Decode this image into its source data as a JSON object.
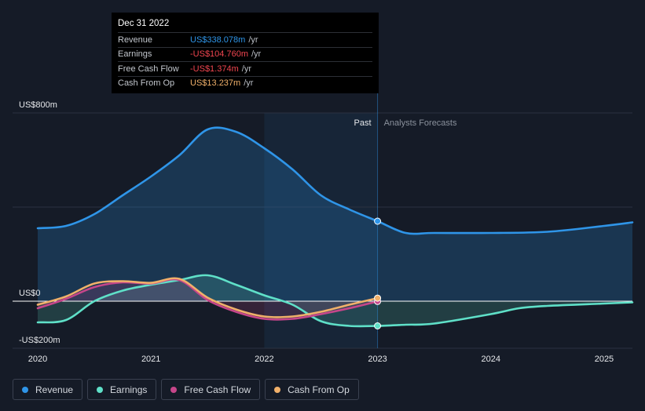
{
  "tooltip": {
    "date": "Dec 31 2022",
    "rows": [
      {
        "label": "Revenue",
        "value": "US$338.078m",
        "unit": "/yr",
        "color": "#2f95e8"
      },
      {
        "label": "Earnings",
        "value": "-US$104.760m",
        "unit": "/yr",
        "color": "#f0454f"
      },
      {
        "label": "Free Cash Flow",
        "value": "-US$1.374m",
        "unit": "/yr",
        "color": "#f0454f"
      },
      {
        "label": "Cash From Op",
        "value": "US$13.237m",
        "unit": "/yr",
        "color": "#f0b06a"
      }
    ]
  },
  "legend": [
    {
      "label": "Revenue",
      "color": "#2f95e8"
    },
    {
      "label": "Earnings",
      "color": "#5fe0c8"
    },
    {
      "label": "Free Cash Flow",
      "color": "#c6468a"
    },
    {
      "label": "Cash From Op",
      "color": "#f0b06a"
    }
  ],
  "chart_data": {
    "type": "line",
    "y_tick_labels": [
      "US$800m",
      "US$0",
      "-US$200m"
    ],
    "ylim": [
      -200,
      800
    ],
    "xlim": [
      2020,
      2025.25
    ],
    "x_tick_labels": [
      "2020",
      "2021",
      "2022",
      "2023",
      "2024",
      "2025"
    ],
    "x_ticks": [
      2020,
      2021,
      2022,
      2023,
      2024,
      2025
    ],
    "past_label": "Past",
    "forecast_label": "Analysts Forecasts",
    "past_end": 2023,
    "highlight_range": [
      2022,
      2023
    ],
    "series": [
      {
        "name": "Revenue",
        "color": "#2f95e8",
        "area": true,
        "x": [
          2020,
          2020.25,
          2020.5,
          2020.75,
          2021,
          2021.25,
          2021.5,
          2021.75,
          2022,
          2022.25,
          2022.5,
          2022.75,
          2023,
          2023.25,
          2023.5,
          2024,
          2024.5,
          2025,
          2025.25
        ],
        "y": [
          310,
          320,
          370,
          450,
          530,
          620,
          730,
          720,
          650,
          560,
          450,
          390,
          340,
          290,
          290,
          290,
          295,
          320,
          335
        ]
      },
      {
        "name": "Earnings",
        "color": "#5fe0c8",
        "area": true,
        "x": [
          2020,
          2020.25,
          2020.5,
          2020.75,
          2021,
          2021.25,
          2021.5,
          2021.75,
          2022,
          2022.25,
          2022.5,
          2022.75,
          2023,
          2023.25,
          2023.5,
          2024,
          2024.25,
          2024.5,
          2025,
          2025.25
        ],
        "y": [
          -90,
          -80,
          0,
          45,
          70,
          90,
          110,
          70,
          25,
          -15,
          -85,
          -105,
          -105,
          -100,
          -95,
          -55,
          -30,
          -20,
          -10,
          -5
        ]
      },
      {
        "name": "Free Cash Flow",
        "color": "#c6468a",
        "area": true,
        "x": [
          2020,
          2020.25,
          2020.5,
          2020.75,
          2021,
          2021.25,
          2021.5,
          2021.75,
          2022,
          2022.25,
          2022.5,
          2022.75,
          2023
        ],
        "y": [
          -30,
          10,
          60,
          80,
          75,
          90,
          5,
          -45,
          -75,
          -75,
          -55,
          -30,
          -1
        ]
      },
      {
        "name": "Cash From Op",
        "color": "#f0b06a",
        "area": false,
        "x": [
          2020,
          2020.25,
          2020.5,
          2020.75,
          2021,
          2021.25,
          2021.5,
          2021.75,
          2022,
          2022.25,
          2022.5,
          2022.75,
          2023
        ],
        "y": [
          -15,
          20,
          75,
          85,
          78,
          95,
          15,
          -35,
          -65,
          -65,
          -45,
          -15,
          13
        ]
      }
    ]
  }
}
